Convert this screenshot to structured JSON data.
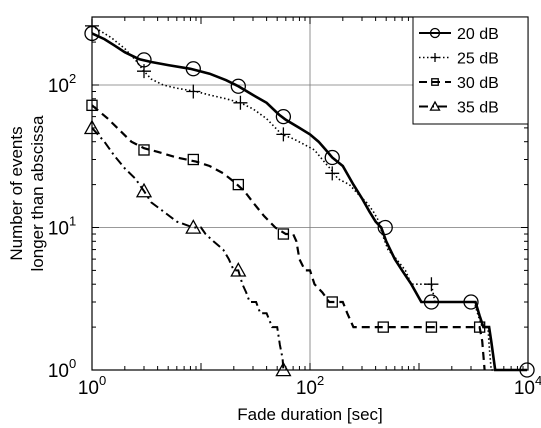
{
  "chart_data": {
    "type": "line",
    "xlabel": "Fade duration [sec]",
    "ylabel": [
      "Number of events",
      "longer than abscissa"
    ],
    "xscale": "log",
    "yscale": "log",
    "xlim": [
      1,
      10000
    ],
    "ylim": [
      1,
      300
    ],
    "grid": true,
    "legend_position": "top-right",
    "x_ticks": [
      {
        "base": "10",
        "exp": "0",
        "value": 1
      },
      {
        "base": "10",
        "exp": "2",
        "value": 100
      },
      {
        "base": "10",
        "exp": "4",
        "value": 10000
      }
    ],
    "y_ticks": [
      {
        "base": "10",
        "exp": "0",
        "value": 1
      },
      {
        "base": "10",
        "exp": "1",
        "value": 10
      },
      {
        "base": "10",
        "exp": "2",
        "value": 100
      }
    ],
    "series": [
      {
        "name": "20 dB",
        "line_style": "solid",
        "marker": "circle",
        "line_width": 2.6,
        "points": [
          [
            1.0,
            230
          ],
          [
            1.3,
            210
          ],
          [
            1.6,
            190
          ],
          [
            2,
            170
          ],
          [
            2.7,
            152
          ],
          [
            3.5,
            145
          ],
          [
            5,
            138
          ],
          [
            8,
            130
          ],
          [
            12,
            120
          ],
          [
            17,
            108
          ],
          [
            22,
            98
          ],
          [
            30,
            85
          ],
          [
            40,
            75
          ],
          [
            52,
            62
          ],
          [
            60,
            57
          ],
          [
            80,
            50
          ],
          [
            100,
            45
          ],
          [
            120,
            40
          ],
          [
            140,
            35
          ],
          [
            160,
            31
          ],
          [
            200,
            27
          ],
          [
            250,
            20
          ],
          [
            300,
            16
          ],
          [
            350,
            13
          ],
          [
            400,
            11
          ],
          [
            450,
            10
          ],
          [
            500,
            8
          ],
          [
            600,
            6
          ],
          [
            700,
            5
          ],
          [
            850,
            4
          ],
          [
            1050,
            3
          ],
          [
            1300,
            3
          ],
          [
            1800,
            3
          ],
          [
            2800,
            3
          ],
          [
            3300,
            3
          ],
          [
            3600,
            2.4
          ],
          [
            3900,
            2
          ],
          [
            4400,
            2
          ],
          [
            4600,
            1.6
          ],
          [
            5000,
            1
          ],
          [
            9800,
            1
          ]
        ],
        "markers": [
          [
            1.0,
            230
          ],
          [
            3.0,
            150
          ],
          [
            8.5,
            130
          ],
          [
            22,
            98
          ],
          [
            57,
            60
          ],
          [
            160,
            31
          ],
          [
            490,
            10
          ],
          [
            1300,
            3
          ],
          [
            3000,
            3
          ],
          [
            9800,
            1
          ]
        ]
      },
      {
        "name": "25 dB",
        "line_style": "dotted",
        "marker": "plus",
        "line_width": 1.6,
        "points": [
          [
            1.0,
            260
          ],
          [
            1.5,
            215
          ],
          [
            2,
            180
          ],
          [
            2.5,
            150
          ],
          [
            3.0,
            125
          ],
          [
            3.5,
            110
          ],
          [
            4.5,
            100
          ],
          [
            6,
            95
          ],
          [
            9,
            90
          ],
          [
            12,
            85
          ],
          [
            17,
            80
          ],
          [
            23,
            75
          ],
          [
            30,
            68
          ],
          [
            40,
            58
          ],
          [
            55,
            45
          ],
          [
            70,
            42
          ],
          [
            90,
            38
          ],
          [
            110,
            35
          ],
          [
            140,
            28
          ],
          [
            160,
            25
          ],
          [
            180,
            22
          ],
          [
            230,
            20
          ],
          [
            280,
            17
          ],
          [
            330,
            15
          ],
          [
            380,
            13
          ],
          [
            430,
            11
          ],
          [
            460,
            9
          ],
          [
            520,
            7
          ],
          [
            620,
            6
          ],
          [
            750,
            5
          ],
          [
            850,
            4
          ],
          [
            1000,
            4
          ],
          [
            1300,
            4
          ],
          [
            1400,
            3
          ],
          [
            1700,
            3
          ],
          [
            2500,
            3
          ],
          [
            3200,
            3
          ],
          [
            3500,
            2.4
          ],
          [
            3800,
            2
          ],
          [
            4300,
            2
          ],
          [
            4400,
            1.5
          ],
          [
            4600,
            1
          ],
          [
            5000,
            1
          ]
        ],
        "markers": [
          [
            1.0,
            260
          ],
          [
            3.0,
            125
          ],
          [
            8.5,
            90
          ],
          [
            23,
            75
          ],
          [
            57,
            45
          ],
          [
            160,
            24
          ],
          [
            1300,
            4
          ]
        ]
      },
      {
        "name": "30 dB",
        "line_style": "dashed",
        "marker": "square",
        "line_width": 2.2,
        "points": [
          [
            1.0,
            72
          ],
          [
            1.4,
            58
          ],
          [
            1.8,
            48
          ],
          [
            2.3,
            40
          ],
          [
            3.0,
            36
          ],
          [
            4,
            34
          ],
          [
            6,
            31
          ],
          [
            9,
            29
          ],
          [
            12,
            27
          ],
          [
            16,
            24
          ],
          [
            20,
            21
          ],
          [
            25,
            18
          ],
          [
            30,
            15
          ],
          [
            38,
            12
          ],
          [
            48,
            10
          ],
          [
            60,
            9
          ],
          [
            70,
            9
          ],
          [
            75,
            8
          ],
          [
            80,
            6
          ],
          [
            90,
            5
          ],
          [
            100,
            5
          ],
          [
            110,
            4
          ],
          [
            130,
            3.5
          ],
          [
            150,
            3
          ],
          [
            200,
            3
          ],
          [
            220,
            2.5
          ],
          [
            250,
            2
          ],
          [
            400,
            2
          ],
          [
            1500,
            2
          ],
          [
            3100,
            2
          ],
          [
            3600,
            2
          ],
          [
            3800,
            1.6
          ],
          [
            4000,
            1
          ]
        ],
        "markers": [
          [
            1.0,
            72
          ],
          [
            3.0,
            35
          ],
          [
            8.5,
            30
          ],
          [
            22,
            20
          ],
          [
            57,
            9
          ],
          [
            160,
            3
          ],
          [
            470,
            2
          ],
          [
            1300,
            2
          ],
          [
            3600,
            2
          ]
        ]
      },
      {
        "name": "35 dB",
        "line_style": "dashdot",
        "marker": "triangle",
        "line_width": 2.0,
        "points": [
          [
            1.0,
            50
          ],
          [
            1.3,
            40
          ],
          [
            1.6,
            32
          ],
          [
            2,
            26
          ],
          [
            2.5,
            22
          ],
          [
            3.0,
            18
          ],
          [
            3.5,
            15
          ],
          [
            4.5,
            13
          ],
          [
            6,
            11
          ],
          [
            8.5,
            10
          ],
          [
            10,
            10
          ],
          [
            11,
            9
          ],
          [
            13,
            8
          ],
          [
            16,
            7
          ],
          [
            18,
            6
          ],
          [
            20,
            5
          ],
          [
            22,
            5
          ],
          [
            24,
            4
          ],
          [
            26,
            3.5
          ],
          [
            28,
            3
          ],
          [
            32,
            3
          ],
          [
            35,
            2.5
          ],
          [
            40,
            2.5
          ],
          [
            45,
            2
          ],
          [
            50,
            2
          ],
          [
            53,
            1.5
          ],
          [
            56,
            1.2
          ],
          [
            57,
            1
          ]
        ],
        "markers": [
          [
            1.0,
            50
          ],
          [
            3.0,
            18
          ],
          [
            8.5,
            10
          ],
          [
            22,
            5
          ],
          [
            57,
            1
          ]
        ]
      }
    ]
  }
}
